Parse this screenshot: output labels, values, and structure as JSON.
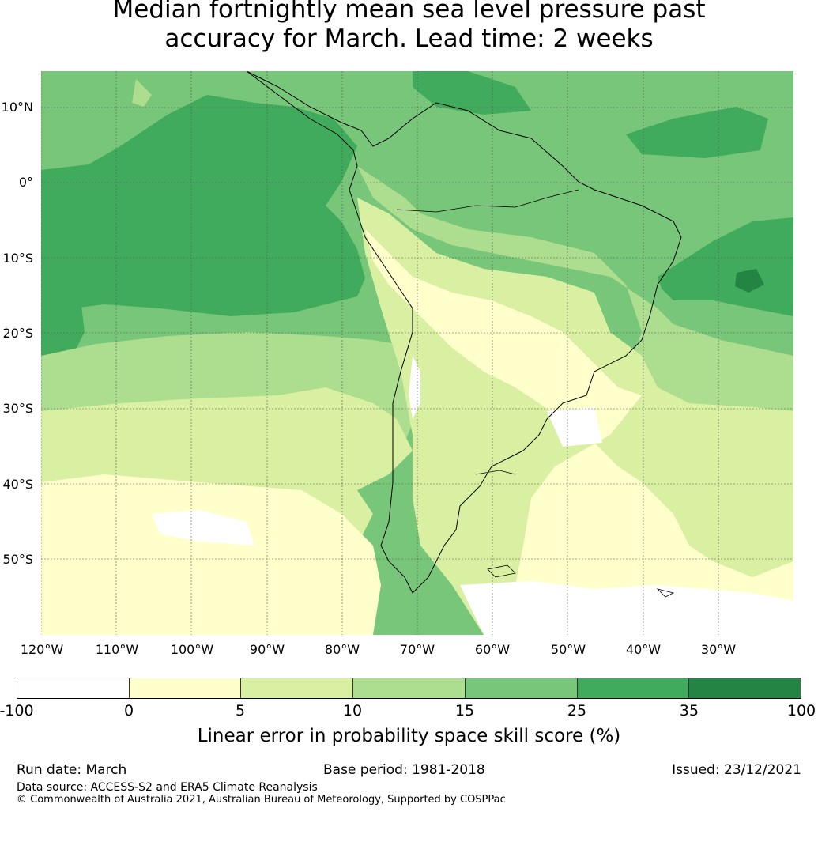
{
  "title_line1": "Median fortnightly mean sea level pressure past",
  "title_line2": "accuracy for March. Lead time: 2 weeks",
  "lat_labels": [
    "10°N",
    "0°",
    "10°S",
    "20°S",
    "30°S",
    "40°S",
    "50°S"
  ],
  "lon_labels": [
    "120°W",
    "110°W",
    "100°W",
    "90°W",
    "80°W",
    "70°W",
    "60°W",
    "50°W",
    "40°W",
    "30°W"
  ],
  "colorbar": {
    "ticks": [
      "-100",
      "0",
      "5",
      "10",
      "15",
      "25",
      "35",
      "100"
    ],
    "colors": [
      "#ffffff",
      "#ffffcc",
      "#d9f0a3",
      "#addd8e",
      "#78c679",
      "#41ab5d",
      "#238443"
    ],
    "label": "Linear error in probability space skill score (%)"
  },
  "footer": {
    "run_date": "Run date: March",
    "base_period": "Base period: 1981-2018",
    "issued": "Issued: 23/12/2021",
    "data_source": "Data source: ACCESS-S2 and ERA5 Climate Reanalysis",
    "copyright": "© Commonwealth of Australia 2021, Australian Bureau of Meteorology, Supported by COSPPac"
  }
}
